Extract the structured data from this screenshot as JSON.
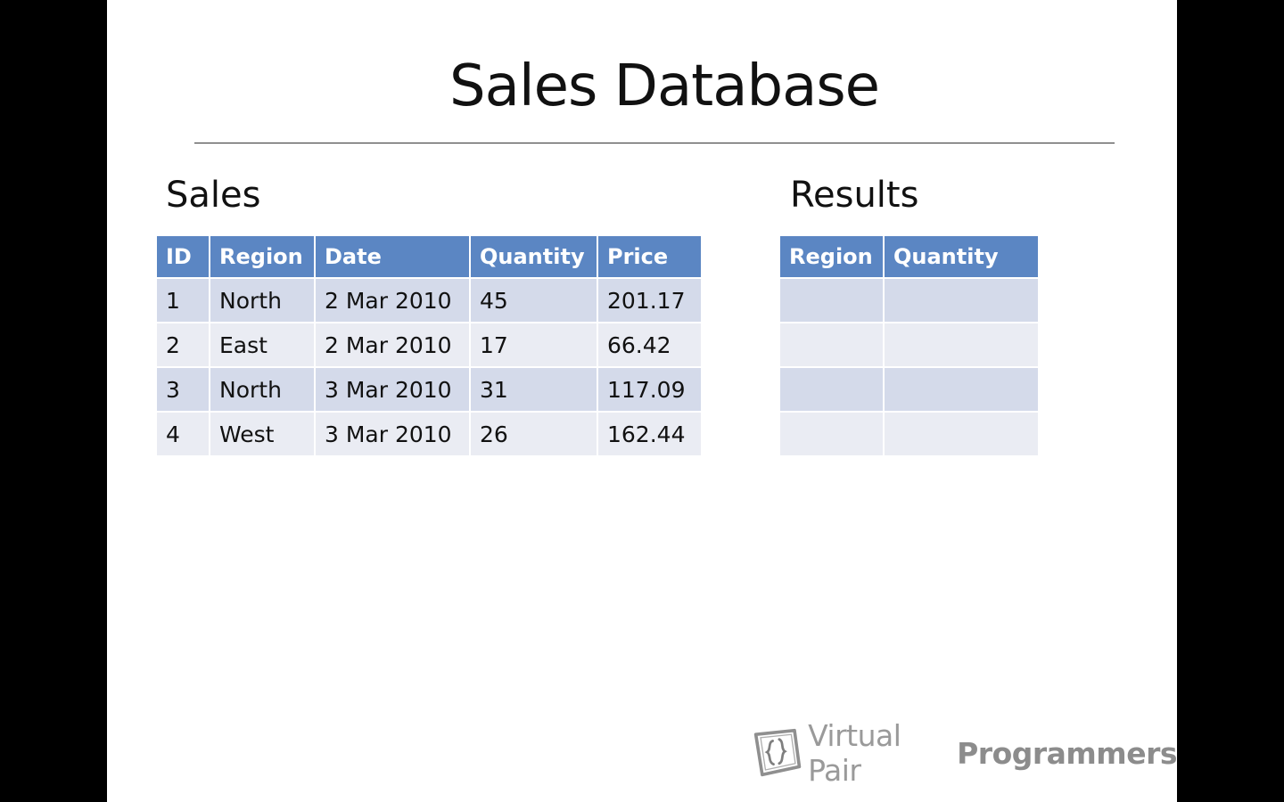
{
  "slide": {
    "title": "Sales Database",
    "sales_heading": "Sales",
    "results_heading": "Results"
  },
  "sales_table": {
    "headers": [
      "ID",
      "Region",
      "Date",
      "Quantity",
      "Price"
    ],
    "rows": [
      [
        "1",
        "North",
        "2 Mar 2010",
        "45",
        "201.17"
      ],
      [
        "2",
        "East",
        "2 Mar 2010",
        "17",
        "66.42"
      ],
      [
        "3",
        "North",
        "3 Mar 2010",
        "31",
        "117.09"
      ],
      [
        "4",
        "West",
        "3 Mar 2010",
        "26",
        "162.44"
      ]
    ]
  },
  "results_table": {
    "headers": [
      "Region",
      "Quantity"
    ],
    "rows": [
      [
        "",
        ""
      ],
      [
        "",
        ""
      ],
      [
        "",
        ""
      ],
      [
        "",
        ""
      ]
    ]
  },
  "branding": {
    "logo_text_light": "Virtual Pair",
    "logo_text_bold": "Programmers",
    "logo_icon": "book-bracket-logo-icon",
    "header_color": "#5b86c3",
    "row_odd_color": "#d4daea",
    "row_even_color": "#eaecf3"
  }
}
